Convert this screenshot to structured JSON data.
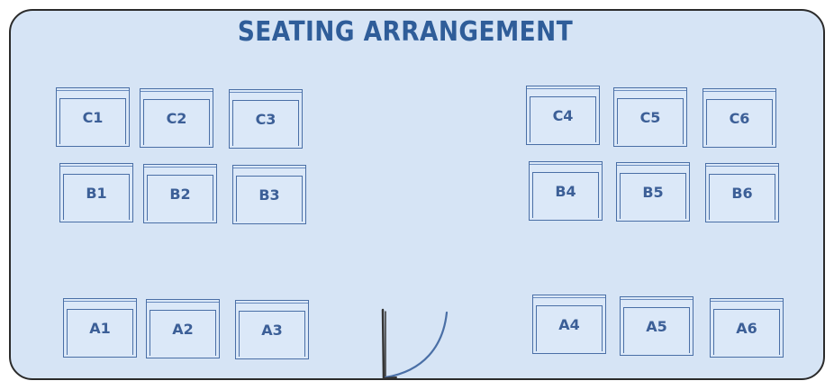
{
  "diagram": {
    "title": "SEATING ARRANGEMENT",
    "colors": {
      "background": "#d6e4f5",
      "seat_stroke": "#4a6fa6",
      "title": "#2f5d99",
      "outline": "#2b2b2b"
    },
    "seats": {
      "C1": "C1",
      "C2": "C2",
      "C3": "C3",
      "C4": "C4",
      "C5": "C5",
      "C6": "C6",
      "B1": "B1",
      "B2": "B2",
      "B3": "B3",
      "B4": "B4",
      "B5": "B5",
      "B6": "B6",
      "A1": "A1",
      "A2": "A2",
      "A3": "A3",
      "A4": "A4",
      "A5": "A5",
      "A6": "A6"
    }
  }
}
